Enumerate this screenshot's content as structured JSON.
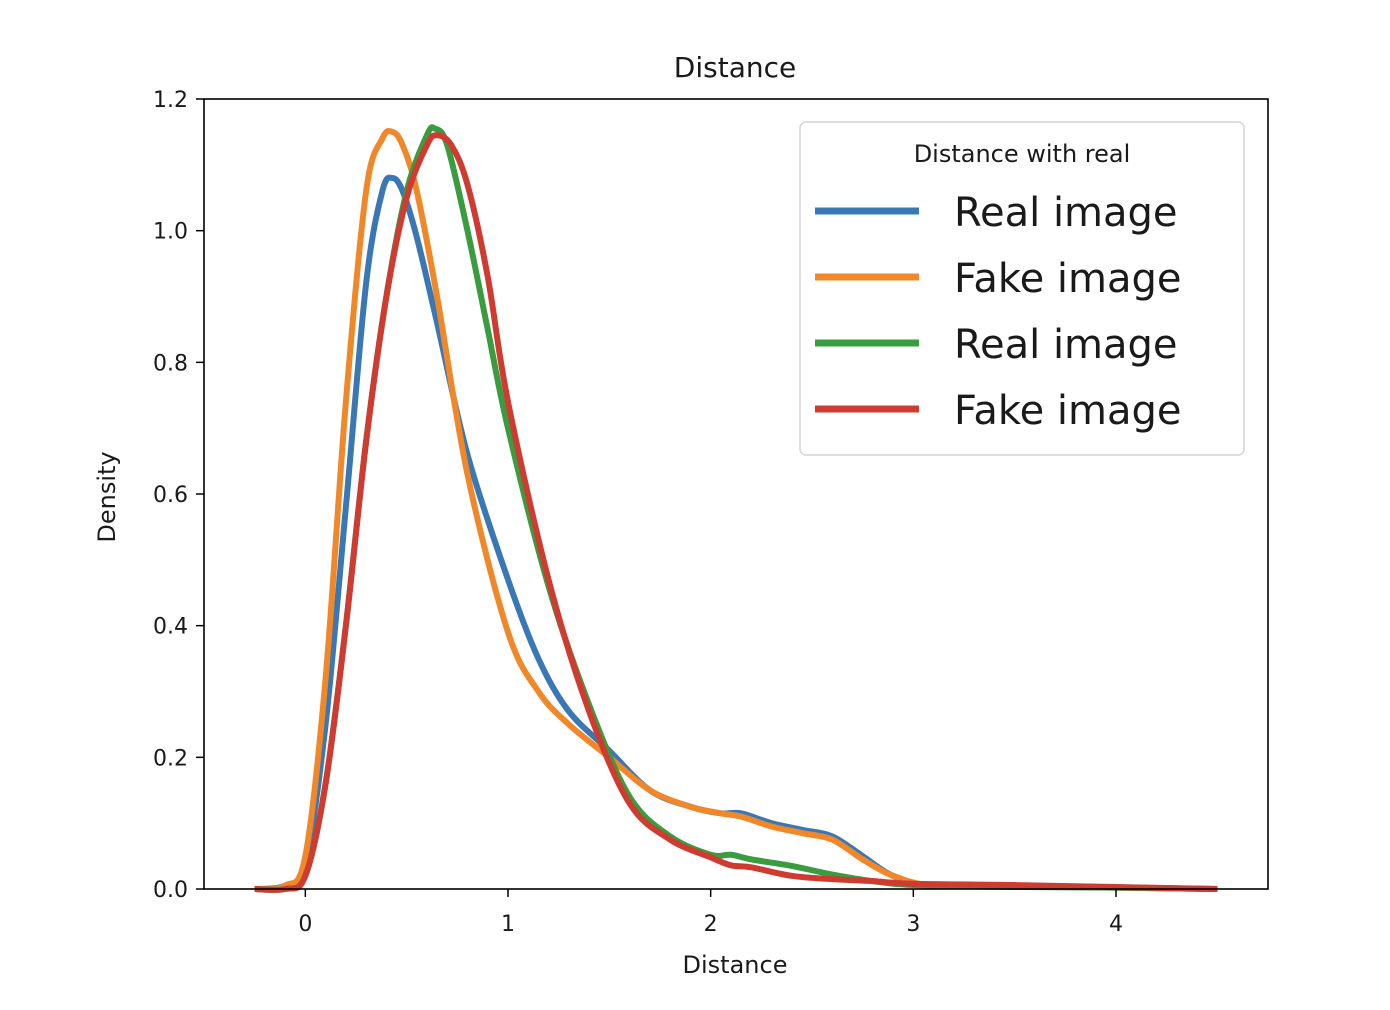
{
  "chart_data": {
    "type": "line",
    "title": "Distance",
    "xlabel": "Distance",
    "ylabel": "Density",
    "xlim": [
      -0.5,
      4.75
    ],
    "ylim": [
      0,
      1.2
    ],
    "xticks": [
      0,
      1,
      2,
      3,
      4
    ],
    "yticks": [
      0.0,
      0.2,
      0.4,
      0.6,
      0.8,
      1.0,
      1.2
    ],
    "xtick_labels": [
      "0",
      "1",
      "2",
      "3",
      "4"
    ],
    "ytick_labels": [
      "0.0",
      "0.2",
      "0.4",
      "0.6",
      "0.8",
      "1.0",
      "1.2"
    ],
    "grid": false,
    "legend": {
      "title": "Distance with real",
      "placement": "top-right"
    },
    "series": [
      {
        "name": "Real image",
        "color": "#3a78b5",
        "x": [
          -0.25,
          -0.1,
          0.0,
          0.1,
          0.2,
          0.3,
          0.38,
          0.43,
          0.48,
          0.55,
          0.65,
          0.8,
          1.0,
          1.15,
          1.3,
          1.5,
          1.7,
          1.9,
          2.05,
          2.15,
          2.3,
          2.45,
          2.6,
          2.75,
          2.9,
          3.1,
          3.5,
          4.0,
          4.5
        ],
        "y": [
          0.0,
          0.005,
          0.04,
          0.25,
          0.58,
          0.92,
          1.06,
          1.08,
          1.06,
          0.99,
          0.86,
          0.66,
          0.47,
          0.35,
          0.27,
          0.21,
          0.15,
          0.125,
          0.115,
          0.115,
          0.1,
          0.09,
          0.08,
          0.05,
          0.02,
          0.005,
          0.004,
          0.002,
          0.0
        ]
      },
      {
        "name": "Fake image",
        "color": "#f0882a",
        "x": [
          -0.25,
          -0.1,
          0.0,
          0.1,
          0.2,
          0.3,
          0.38,
          0.43,
          0.48,
          0.55,
          0.65,
          0.8,
          1.0,
          1.15,
          1.3,
          1.5,
          1.7,
          1.9,
          2.05,
          2.15,
          2.3,
          2.45,
          2.6,
          2.75,
          2.9,
          3.1,
          3.5,
          4.0,
          4.5
        ],
        "y": [
          0.0,
          0.005,
          0.05,
          0.32,
          0.74,
          1.06,
          1.14,
          1.15,
          1.13,
          1.06,
          0.9,
          0.63,
          0.39,
          0.3,
          0.25,
          0.2,
          0.15,
          0.125,
          0.115,
          0.11,
          0.095,
          0.085,
          0.075,
          0.045,
          0.02,
          0.005,
          0.004,
          0.002,
          0.0
        ]
      },
      {
        "name": "Real image",
        "color": "#3a9c3e",
        "x": [
          -0.25,
          -0.1,
          0.0,
          0.1,
          0.2,
          0.3,
          0.4,
          0.5,
          0.6,
          0.64,
          0.7,
          0.8,
          0.9,
          1.0,
          1.2,
          1.4,
          1.6,
          1.8,
          2.0,
          2.1,
          2.2,
          2.4,
          2.6,
          2.8,
          3.0,
          3.5,
          4.0,
          4.5
        ],
        "y": [
          0.0,
          0.0,
          0.02,
          0.16,
          0.4,
          0.68,
          0.9,
          1.06,
          1.145,
          1.155,
          1.13,
          1.0,
          0.85,
          0.7,
          0.46,
          0.28,
          0.14,
          0.08,
          0.052,
          0.052,
          0.045,
          0.035,
          0.022,
          0.012,
          0.006,
          0.003,
          0.002,
          0.0
        ]
      },
      {
        "name": "Fake image",
        "color": "#cf3b30",
        "x": [
          -0.25,
          -0.1,
          0.0,
          0.1,
          0.2,
          0.3,
          0.4,
          0.5,
          0.6,
          0.65,
          0.72,
          0.8,
          0.9,
          1.0,
          1.2,
          1.4,
          1.6,
          1.8,
          2.0,
          2.1,
          2.2,
          2.4,
          2.6,
          2.8,
          3.0,
          3.5,
          4.0,
          4.5
        ],
        "y": [
          0.0,
          0.0,
          0.02,
          0.16,
          0.4,
          0.68,
          0.9,
          1.05,
          1.13,
          1.145,
          1.13,
          1.07,
          0.93,
          0.74,
          0.47,
          0.27,
          0.13,
          0.075,
          0.048,
          0.036,
          0.033,
          0.02,
          0.015,
          0.012,
          0.008,
          0.006,
          0.003,
          0.0
        ]
      }
    ]
  }
}
